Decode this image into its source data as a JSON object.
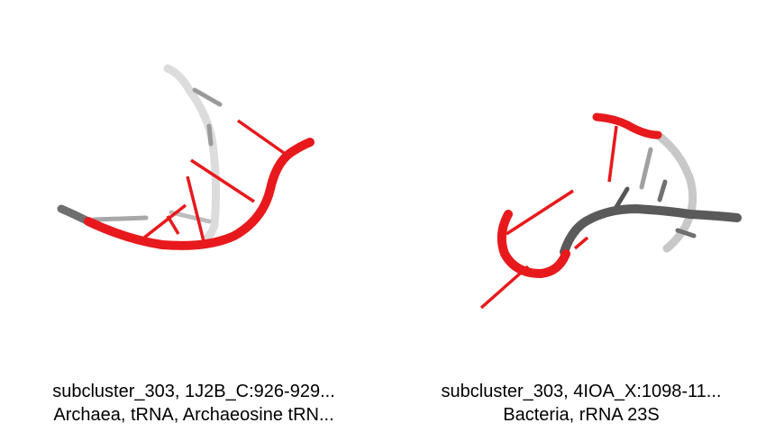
{
  "panels": [
    {
      "caption_line1": "subcluster_303, 1J2B_C:926-929...",
      "caption_line2": "Archaea, tRNA, Archaeosine tRN..."
    },
    {
      "caption_line1": "subcluster_303, 4IOA_X:1098-11...",
      "caption_line2": "Bacteria, rRNA 23S"
    }
  ],
  "colors": {
    "highlight": "#e8191c",
    "light_backbone": "#d9d9d9",
    "dark_backbone": "#5a5a5a",
    "background": "#ffffff"
  }
}
